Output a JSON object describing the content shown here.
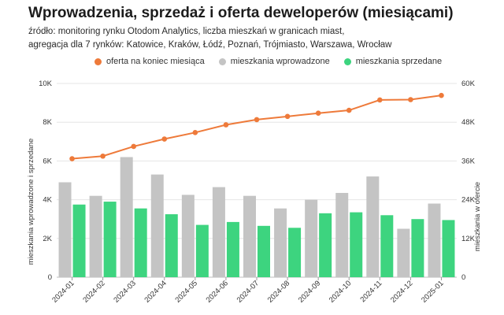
{
  "header": {
    "title": "Wprowadzenia, sprzedaż i oferta deweloperów (miesiącami)",
    "subtitle_line1": "źródło: monitoring rynku Otodom Analytics, liczba mieszkań w granicach miast,",
    "subtitle_line2": "agregacja dla 7 rynków: Katowice, Kraków, Łódź, Poznań, Trójmiasto, Warszawa, Wrocław"
  },
  "chart_data": {
    "type": "bar",
    "title": "Wprowadzenia, sprzedaż i oferta deweloperów (miesiącami)",
    "categories": [
      "2024-01",
      "2024-02",
      "2024-03",
      "2024-04",
      "2024-05",
      "2024-06",
      "2024-07",
      "2024-08",
      "2024-09",
      "2024-10",
      "2024-11",
      "2024-12",
      "2025-01"
    ],
    "series": [
      {
        "name": "mieszkania wprowadzone",
        "kind": "bar",
        "axis": "left",
        "color": "#c4c4c4",
        "values": [
          4900,
          4200,
          6200,
          5300,
          4250,
          4650,
          4200,
          3550,
          4000,
          4350,
          5200,
          2500,
          3800
        ]
      },
      {
        "name": "mieszkania sprzedane",
        "kind": "bar",
        "axis": "left",
        "color": "#3dd47f",
        "values": [
          3750,
          3900,
          3550,
          3250,
          2700,
          2850,
          2650,
          2550,
          3300,
          3350,
          3200,
          3000,
          2950
        ]
      },
      {
        "name": "oferta na koniec miesiąca",
        "kind": "line",
        "axis": "right",
        "color": "#ee7a3a",
        "values": [
          36700,
          37500,
          40500,
          42800,
          44800,
          47200,
          48800,
          49800,
          50800,
          51700,
          54900,
          55000,
          56300
        ]
      }
    ],
    "ylabel": "mieszkania wprowadzone i sprzedane",
    "ylabel_right": "mieszkania w ofercie",
    "ylim": [
      0,
      10000
    ],
    "ylim_right": [
      0,
      60000
    ],
    "yticks": [
      0,
      2000,
      4000,
      6000,
      8000,
      10000
    ],
    "yticks_labels": [
      "0",
      "2K",
      "4K",
      "6K",
      "8K",
      "10K"
    ],
    "yticks_right": [
      0,
      12000,
      24000,
      36000,
      48000,
      60000
    ],
    "yticks_right_labels": [
      "0",
      "12K",
      "24K",
      "36K",
      "48K",
      "60K"
    ],
    "grid": true,
    "legend": "top"
  }
}
